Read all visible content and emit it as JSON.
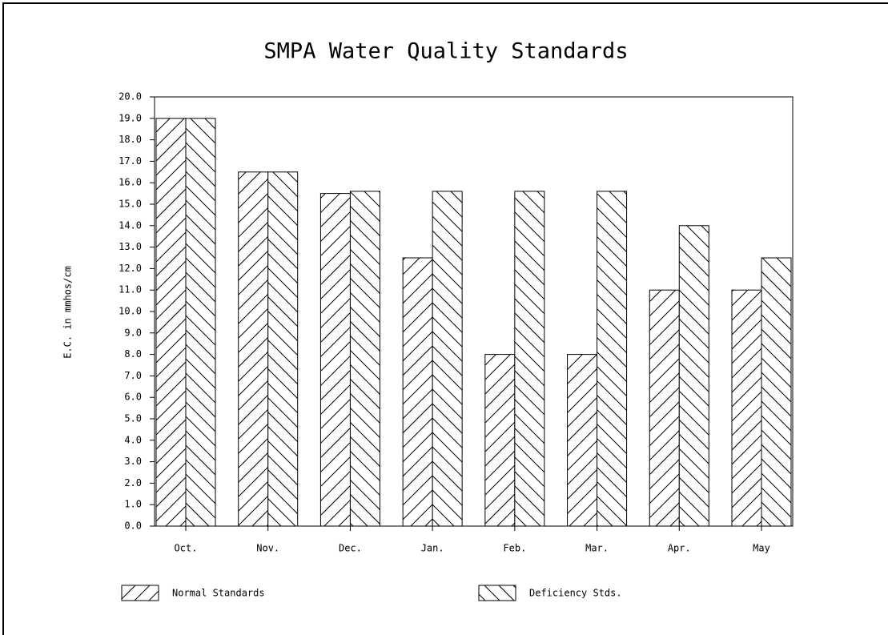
{
  "chart_data": {
    "type": "bar",
    "title": "SMPA Water Quality Standards",
    "ylabel": "E.C. in mmhos/cm",
    "categories": [
      "Oct.",
      "Nov.",
      "Dec.",
      "Jan.",
      "Feb.",
      "Mar.",
      "Apr.",
      "May"
    ],
    "series": [
      {
        "name": "Normal Standards",
        "color": "#000000",
        "hatch": "/",
        "values": [
          19,
          16.5,
          15.5,
          12.5,
          8,
          8,
          11,
          11
        ]
      },
      {
        "name": "Deficiency Stds.",
        "color": "#000000",
        "hatch": "\\",
        "values": [
          19,
          16.5,
          15.6,
          15.6,
          15.6,
          15.6,
          14,
          12.5
        ]
      }
    ],
    "ylim": [
      0,
      20
    ],
    "yticks": [
      {
        "value": 0,
        "label": "0.0"
      },
      {
        "value": 1,
        "label": "1.0"
      },
      {
        "value": 2,
        "label": "2.0"
      },
      {
        "value": 3,
        "label": "3.0"
      },
      {
        "value": 4,
        "label": "4.0"
      },
      {
        "value": 5,
        "label": "5.0"
      },
      {
        "value": 6,
        "label": "6.0"
      },
      {
        "value": 7,
        "label": "7.0"
      },
      {
        "value": 8,
        "label": "8.0"
      },
      {
        "value": 9,
        "label": "9.0"
      },
      {
        "value": 10,
        "label": "10.0"
      },
      {
        "value": 11,
        "label": "11.0"
      },
      {
        "value": 12,
        "label": "12.0"
      },
      {
        "value": 13,
        "label": "13.0"
      },
      {
        "value": 14,
        "label": "14.0"
      },
      {
        "value": 15,
        "label": "15.0"
      },
      {
        "value": 16,
        "label": "16.0"
      },
      {
        "value": 17,
        "label": "17.0"
      },
      {
        "value": 18,
        "label": "18.0"
      },
      {
        "value": 19,
        "label": "19.0"
      },
      {
        "value": 20,
        "label": "20.0"
      }
    ],
    "grid": false,
    "legend": "bottom"
  }
}
